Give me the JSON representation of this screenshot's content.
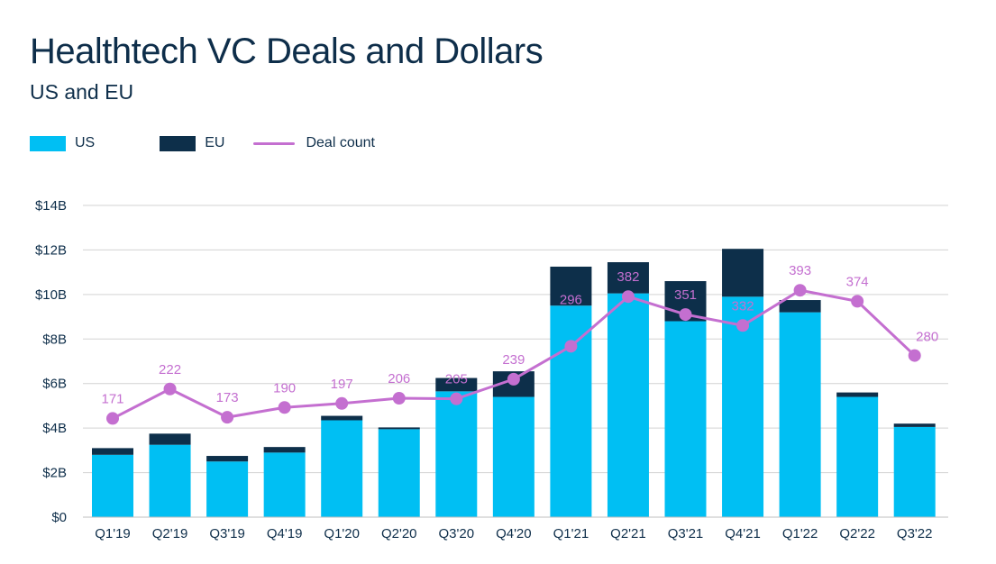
{
  "header": {
    "title": "Healthtech VC Deals and Dollars",
    "subtitle": "US and EU"
  },
  "legend": {
    "us_label": "US",
    "eu_label": "EU",
    "deal_label": "Deal count"
  },
  "colors": {
    "us": "#00bff3",
    "eu": "#0d2f4a",
    "deal_count": "#c46fd0",
    "grid": "#d3d3d3",
    "text": "#0e2e4a"
  },
  "chart_data": {
    "type": "bar",
    "stacked": true,
    "title": "Healthtech VC Deals and Dollars",
    "subtitle": "US and EU",
    "categories": [
      "Q1'19",
      "Q2'19",
      "Q3'19",
      "Q4'19",
      "Q1'20",
      "Q2'20",
      "Q3'20",
      "Q4'20",
      "Q1'21",
      "Q2'21",
      "Q3'21",
      "Q4'21",
      "Q1'22",
      "Q2'22",
      "Q3'22"
    ],
    "series": [
      {
        "name": "US",
        "type": "bar",
        "values": [
          2.8,
          3.25,
          2.5,
          2.9,
          4.35,
          3.95,
          5.65,
          5.4,
          9.5,
          10.05,
          8.8,
          9.9,
          9.2,
          5.4,
          4.05
        ]
      },
      {
        "name": "EU",
        "type": "bar",
        "values": [
          0.3,
          0.5,
          0.25,
          0.25,
          0.2,
          0.08,
          0.6,
          1.15,
          1.75,
          1.4,
          1.8,
          2.15,
          0.55,
          0.2,
          0.15
        ]
      },
      {
        "name": "Deal count",
        "type": "line",
        "values": [
          171,
          222,
          173,
          190,
          197,
          206,
          205,
          239,
          296,
          382,
          351,
          332,
          393,
          374,
          280
        ]
      }
    ],
    "y_ticks": [
      "$0",
      "$2B",
      "$4B",
      "$6B",
      "$8B",
      "$10B",
      "$12B",
      "$14B"
    ],
    "ylim": [
      0,
      14
    ],
    "grid": true,
    "legend_position": "top-left"
  }
}
